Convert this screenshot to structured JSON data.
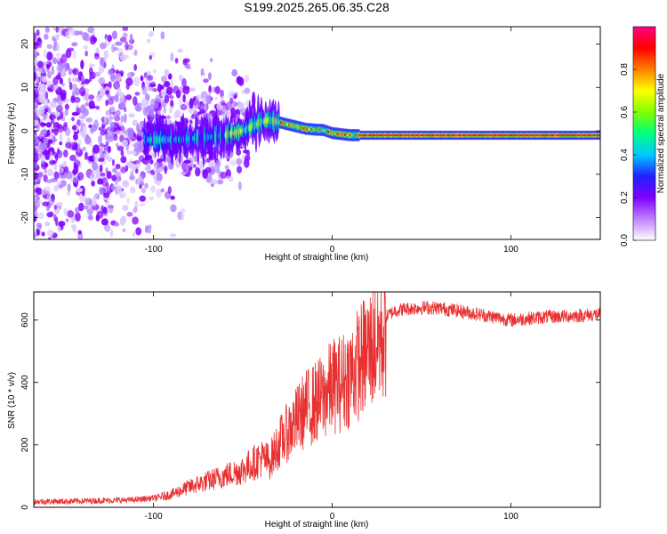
{
  "title": "S199.2025.265.06.35.C28",
  "chart_data": [
    {
      "type": "heatmap",
      "xlabel": "Height of straight line (km)",
      "ylabel": "Frequency (Hz)",
      "xlim": [
        -167,
        150
      ],
      "ylim": [
        -25,
        24
      ],
      "xticks": [
        -100,
        0,
        100
      ],
      "yticks": [
        -20,
        -10,
        0,
        10,
        20
      ],
      "colorbar": {
        "label": "Normalized spectral amplitude",
        "range": [
          0,
          1
        ],
        "ticks": [
          0.0,
          0.2,
          0.4,
          0.6,
          0.8
        ],
        "colormap": [
          "#ffffff",
          "#c080ff",
          "#8000ff",
          "#2020ff",
          "#00c8ff",
          "#00ff80",
          "#80ff00",
          "#ffff00",
          "#ff8000",
          "#ff0000",
          "#ff0080"
        ]
      },
      "ridge": {
        "description_points_x": [
          -85,
          -70,
          -60,
          -50,
          -45,
          -40,
          -35,
          -30,
          -25,
          -20,
          -15,
          -10,
          -5,
          0,
          10,
          20,
          40,
          60,
          80,
          90,
          100,
          120,
          150
        ],
        "frequency": [
          -2,
          -1.5,
          -1,
          0,
          1,
          2,
          2.5,
          2,
          1.5,
          1,
          0.5,
          0.3,
          0.2,
          -0.5,
          -1,
          -1,
          -1,
          -1,
          -1,
          -1,
          -1,
          -1,
          -1
        ]
      }
    },
    {
      "type": "line",
      "xlabel": "Height of straight line (km)",
      "ylabel": "SNR (10 * v/v)",
      "xlim": [
        -167,
        150
      ],
      "ylim": [
        0,
        690
      ],
      "xticks": [
        -100,
        0,
        100
      ],
      "yticks": [
        0,
        200,
        400,
        600
      ],
      "color": "#e83030",
      "envelope": {
        "x": [
          -167,
          -140,
          -110,
          -100,
          -90,
          -80,
          -70,
          -60,
          -50,
          -45,
          -40,
          -35,
          -30,
          -25,
          -20,
          -15,
          -10,
          -5,
          0,
          5,
          10,
          15,
          20,
          25,
          30,
          35,
          40,
          50,
          60,
          70,
          80,
          90,
          100,
          110,
          120,
          130,
          140,
          150
        ],
        "y": [
          18,
          20,
          24,
          30,
          45,
          70,
          90,
          110,
          130,
          150,
          170,
          160,
          220,
          260,
          300,
          340,
          360,
          380,
          420,
          430,
          460,
          500,
          540,
          580,
          610,
          630,
          635,
          640,
          638,
          630,
          620,
          610,
          600,
          605,
          610,
          612,
          615,
          618
        ]
      }
    }
  ]
}
